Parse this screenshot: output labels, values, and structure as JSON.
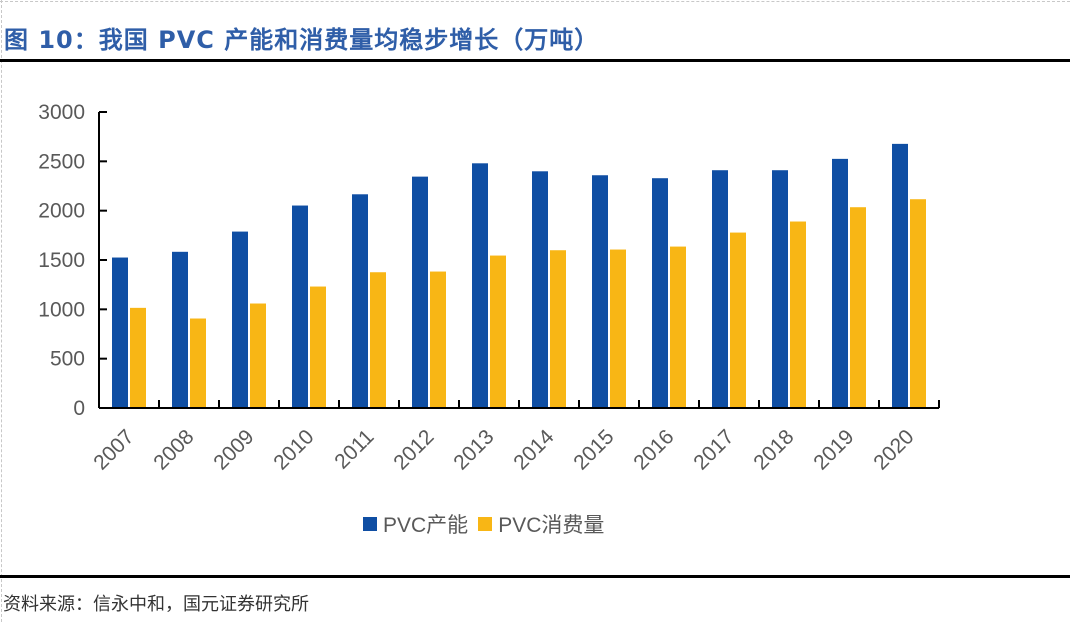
{
  "title": "图 10：我国 PVC 产能和消费量均稳步增长（万吨）",
  "source": "资料来源：信永中和，国元证券研究所",
  "colors": {
    "capacity": "#0f4ea3",
    "consumption": "#f8b615",
    "title": "#2f5ea8"
  },
  "legend": [
    {
      "label": "PVC产能",
      "color": "#0f4ea3"
    },
    {
      "label": "PVC消费量",
      "color": "#f8b615"
    }
  ],
  "chart_data": {
    "type": "bar",
    "title": "我国 PVC 产能和消费量均稳步增长（万吨）",
    "xlabel": "",
    "ylabel": "",
    "categories": [
      "2007",
      "2008",
      "2009",
      "2010",
      "2011",
      "2012",
      "2013",
      "2014",
      "2015",
      "2016",
      "2017",
      "2018",
      "2019",
      "2020"
    ],
    "series": [
      {
        "name": "PVC产能",
        "values": [
          1525,
          1583,
          1788,
          2052,
          2166,
          2345,
          2480,
          2399,
          2359,
          2329,
          2410,
          2410,
          2525,
          2677
        ]
      },
      {
        "name": "PVC消费量",
        "values": [
          1015,
          907,
          1059,
          1231,
          1376,
          1383,
          1545,
          1599,
          1606,
          1636,
          1778,
          1890,
          2035,
          2116
        ]
      }
    ],
    "ylim": [
      0,
      3000
    ],
    "yticks": [
      0,
      500,
      1000,
      1500,
      2000,
      2500,
      3000
    ],
    "grid": false,
    "legend_position": "bottom"
  }
}
